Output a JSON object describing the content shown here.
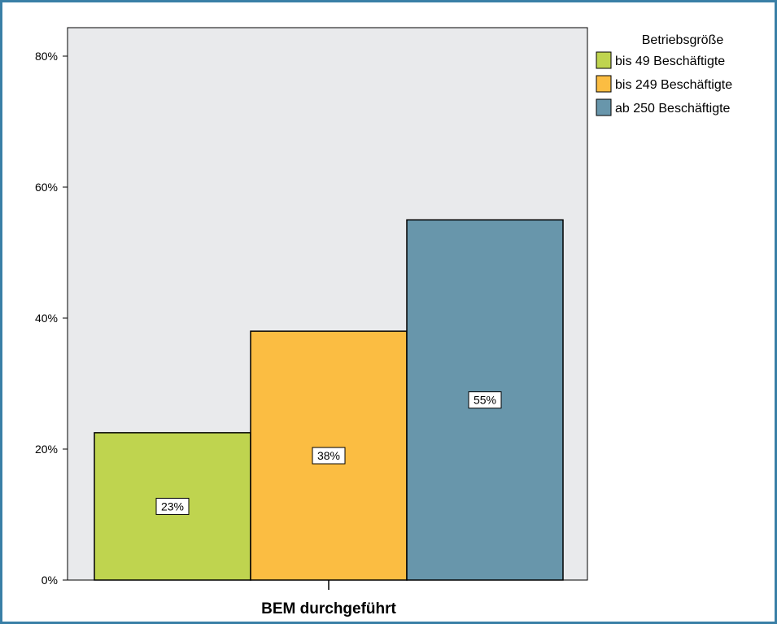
{
  "chart_data": {
    "type": "bar",
    "categories": [
      "BEM durchgeführt"
    ],
    "xlabel": "BEM durchgeführt",
    "ylabel": "",
    "ylim": [
      0,
      85
    ],
    "yticks": [
      0,
      20,
      40,
      60,
      80
    ],
    "ytick_labels": [
      "0%",
      "20%",
      "40%",
      "60%",
      "80%"
    ],
    "grid": false,
    "legend": {
      "title": "Betriebsgröße",
      "placement": "right-top"
    },
    "series": [
      {
        "name": "bis 49 Beschäftigte",
        "values": [
          22.5
        ],
        "label": "23%",
        "color": "#bfd44f"
      },
      {
        "name": "bis 249 Beschäftigte",
        "values": [
          38
        ],
        "label": "38%",
        "color": "#fbbd42"
      },
      {
        "name": "ab 250 Beschäftigte",
        "values": [
          55
        ],
        "label": "55%",
        "color": "#6896ab"
      }
    ],
    "colors": {
      "plot_background": "#e9eaec",
      "frame": "#3a7fa6"
    }
  }
}
